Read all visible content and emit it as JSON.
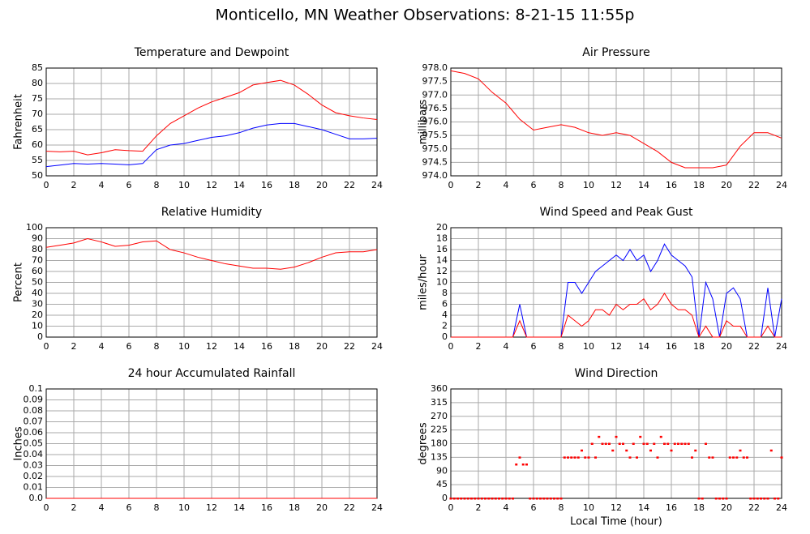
{
  "title": "Monticello, MN Weather Observations: 8-21-15 11:55p",
  "chart_data": [
    {
      "type": "line",
      "title": "Temperature and Dewpoint",
      "ylabel": "Fahrenheit",
      "x": [
        0,
        1,
        2,
        3,
        4,
        5,
        6,
        7,
        8,
        9,
        10,
        11,
        12,
        13,
        14,
        15,
        16,
        17,
        18,
        19,
        20,
        21,
        22,
        23,
        24
      ],
      "series": [
        {
          "color": "#ff0000",
          "values": [
            58,
            57.8,
            58,
            56.8,
            57.5,
            58.5,
            58.2,
            58,
            63,
            67,
            69.5,
            72,
            74,
            75.5,
            77,
            79.5,
            80.3,
            81,
            79.5,
            76.5,
            73,
            70.5,
            69.5,
            68.8,
            68.3
          ]
        },
        {
          "color": "#0000ff",
          "values": [
            53,
            53.5,
            54,
            53.8,
            54,
            53.8,
            53.6,
            54,
            58.5,
            60,
            60.5,
            61.5,
            62.5,
            63,
            64,
            65.5,
            66.5,
            67,
            67,
            66,
            65,
            63.5,
            62,
            62,
            62.2
          ]
        }
      ],
      "xlim": [
        0,
        24
      ],
      "xticks": [
        0,
        2,
        4,
        6,
        8,
        10,
        12,
        14,
        16,
        18,
        20,
        22,
        24
      ],
      "ylim": [
        50,
        85
      ],
      "yticks": [
        50,
        55,
        60,
        65,
        70,
        75,
        80,
        85
      ],
      "grid": true
    },
    {
      "type": "line",
      "title": "Air Pressure",
      "ylabel": "millibars",
      "x": [
        0,
        1,
        2,
        3,
        4,
        5,
        6,
        7,
        8,
        9,
        10,
        11,
        12,
        13,
        14,
        15,
        16,
        17,
        18,
        19,
        20,
        21,
        22,
        23,
        24
      ],
      "series": [
        {
          "color": "#ff0000",
          "values": [
            977.9,
            977.8,
            977.6,
            977.1,
            976.7,
            976.1,
            975.7,
            975.8,
            975.9,
            975.8,
            975.6,
            975.5,
            975.6,
            975.5,
            975.2,
            974.9,
            974.5,
            974.3,
            974.3,
            974.3,
            974.4,
            975.1,
            975.6,
            975.6,
            975.4
          ]
        }
      ],
      "xlim": [
        0,
        24
      ],
      "xticks": [
        0,
        2,
        4,
        6,
        8,
        10,
        12,
        14,
        16,
        18,
        20,
        22,
        24
      ],
      "ylim": [
        974,
        978
      ],
      "yticks": [
        {
          "value": 974,
          "label": "974.0"
        },
        974.5,
        {
          "value": 975,
          "label": "975.0"
        },
        975.5,
        {
          "value": 976,
          "label": "976.0"
        },
        976.5,
        {
          "value": 977,
          "label": "977.0"
        },
        977.5,
        {
          "value": 978,
          "label": "978.0"
        }
      ],
      "grid": true
    },
    {
      "type": "line",
      "title": "Relative Humidity",
      "ylabel": "Percent",
      "x": [
        0,
        1,
        2,
        3,
        4,
        5,
        6,
        7,
        8,
        9,
        10,
        11,
        12,
        13,
        14,
        15,
        16,
        17,
        18,
        19,
        20,
        21,
        22,
        23,
        24
      ],
      "series": [
        {
          "color": "#ff0000",
          "values": [
            82,
            84,
            86,
            90,
            87,
            83,
            84,
            87,
            88,
            80,
            77,
            73,
            70,
            67,
            65,
            63,
            63,
            62,
            64,
            68,
            73,
            77,
            78,
            78,
            80
          ]
        }
      ],
      "xlim": [
        0,
        24
      ],
      "xticks": [
        0,
        2,
        4,
        6,
        8,
        10,
        12,
        14,
        16,
        18,
        20,
        22,
        24
      ],
      "ylim": [
        0,
        100
      ],
      "yticks": [
        0,
        10,
        20,
        30,
        40,
        50,
        60,
        70,
        80,
        90,
        100
      ],
      "grid": true
    },
    {
      "type": "line",
      "title": "Wind Speed and Peak Gust",
      "ylabel": "miles/hour",
      "x": [
        0,
        0.5,
        1,
        1.5,
        2,
        2.5,
        3,
        3.5,
        4,
        4.5,
        5,
        5.5,
        6,
        6.5,
        7,
        7.5,
        8,
        8.5,
        9,
        9.5,
        10,
        10.5,
        11,
        11.5,
        12,
        12.5,
        13,
        13.5,
        14,
        14.5,
        15,
        15.5,
        16,
        16.5,
        17,
        17.5,
        18,
        18.5,
        19,
        19.5,
        20,
        20.5,
        21,
        21.5,
        22,
        22.5,
        23,
        23.5,
        24
      ],
      "series": [
        {
          "color": "#0000ff",
          "values": [
            0,
            0,
            0,
            0,
            0,
            0,
            0,
            0,
            0,
            0,
            6,
            0,
            0,
            0,
            0,
            0,
            0,
            10,
            10,
            8,
            10,
            12,
            13,
            14,
            15,
            14,
            16,
            14,
            15,
            12,
            14,
            17,
            15,
            14,
            13,
            11,
            0,
            10,
            7,
            0,
            8,
            9,
            7,
            0,
            0,
            0,
            9,
            0,
            7
          ]
        },
        {
          "color": "#ff0000",
          "values": [
            0,
            0,
            0,
            0,
            0,
            0,
            0,
            0,
            0,
            0,
            3,
            0,
            0,
            0,
            0,
            0,
            0,
            4,
            3,
            2,
            3,
            5,
            5,
            4,
            6,
            5,
            6,
            6,
            7,
            5,
            6,
            8,
            6,
            5,
            5,
            4,
            0,
            2,
            0,
            0,
            3,
            2,
            2,
            0,
            0,
            0,
            2,
            0,
            0
          ]
        }
      ],
      "xlim": [
        0,
        24
      ],
      "xticks": [
        0,
        2,
        4,
        6,
        8,
        10,
        12,
        14,
        16,
        18,
        20,
        22,
        24
      ],
      "ylim": [
        0,
        20
      ],
      "yticks": [
        0,
        2,
        4,
        6,
        8,
        10,
        12,
        14,
        16,
        18,
        20
      ],
      "grid": true
    },
    {
      "type": "line",
      "title": "24 hour Accumulated Rainfall",
      "ylabel": "Inches",
      "x": [
        0,
        24
      ],
      "series": [
        {
          "color": "#ff0000",
          "values": [
            0,
            0
          ]
        }
      ],
      "xlim": [
        0,
        24
      ],
      "xticks": [
        0,
        2,
        4,
        6,
        8,
        10,
        12,
        14,
        16,
        18,
        20,
        22,
        24
      ],
      "ylim": [
        0,
        0.1
      ],
      "yticks": [
        {
          "value": 0,
          "label": "0.0"
        },
        0.01,
        0.02,
        0.03,
        0.04,
        0.05,
        0.06,
        0.07,
        0.08,
        0.09,
        0.1
      ],
      "grid": true
    },
    {
      "type": "scatter",
      "title": "Wind Direction",
      "ylabel": "degrees",
      "xlabel": "Local Time (hour)",
      "x": [
        0,
        0.25,
        0.5,
        0.75,
        1,
        1.25,
        1.5,
        1.75,
        2,
        2.25,
        2.5,
        2.75,
        3,
        3.25,
        3.5,
        3.75,
        4,
        4.25,
        4.5,
        4.75,
        5,
        5.25,
        5.5,
        5.75,
        6,
        6.25,
        6.5,
        6.75,
        7,
        7.25,
        7.5,
        7.75,
        8,
        8.25,
        8.5,
        8.75,
        9,
        9.25,
        9.5,
        9.75,
        10,
        10.25,
        10.5,
        10.75,
        11,
        11.25,
        11.5,
        11.75,
        12,
        12.25,
        12.5,
        12.75,
        13,
        13.25,
        13.5,
        13.75,
        14,
        14.25,
        14.5,
        14.75,
        15,
        15.25,
        15.5,
        15.75,
        16,
        16.25,
        16.5,
        16.75,
        17,
        17.25,
        17.5,
        17.75,
        18,
        18.25,
        18.5,
        18.75,
        19,
        19.25,
        19.5,
        19.75,
        20,
        20.25,
        20.5,
        20.75,
        21,
        21.25,
        21.5,
        21.75,
        22,
        22.25,
        22.5,
        22.75,
        23,
        23.25,
        23.5,
        23.75,
        24
      ],
      "color": "#ff0000",
      "values": [
        0,
        0,
        0,
        0,
        0,
        0,
        0,
        0,
        0,
        0,
        0,
        0,
        0,
        0,
        0,
        0,
        0,
        0,
        0,
        112,
        135,
        112,
        112,
        0,
        0,
        0,
        0,
        0,
        0,
        0,
        0,
        0,
        0,
        135,
        135,
        135,
        135,
        135,
        158,
        135,
        135,
        180,
        135,
        203,
        180,
        180,
        180,
        158,
        203,
        180,
        180,
        158,
        135,
        180,
        135,
        203,
        180,
        180,
        158,
        180,
        135,
        203,
        180,
        180,
        158,
        180,
        180,
        180,
        180,
        180,
        135,
        158,
        0,
        0,
        180,
        135,
        135,
        0,
        0,
        0,
        0,
        135,
        135,
        135,
        158,
        135,
        135,
        0,
        0,
        0,
        0,
        0,
        0,
        158,
        0,
        0,
        135
      ],
      "xlim": [
        0,
        24
      ],
      "xticks": [
        0,
        2,
        4,
        6,
        8,
        10,
        12,
        14,
        16,
        18,
        20,
        22,
        24
      ],
      "ylim": [
        0,
        360
      ],
      "yticks": [
        0,
        45,
        90,
        135,
        180,
        225,
        270,
        315,
        360
      ],
      "grid": true
    }
  ]
}
